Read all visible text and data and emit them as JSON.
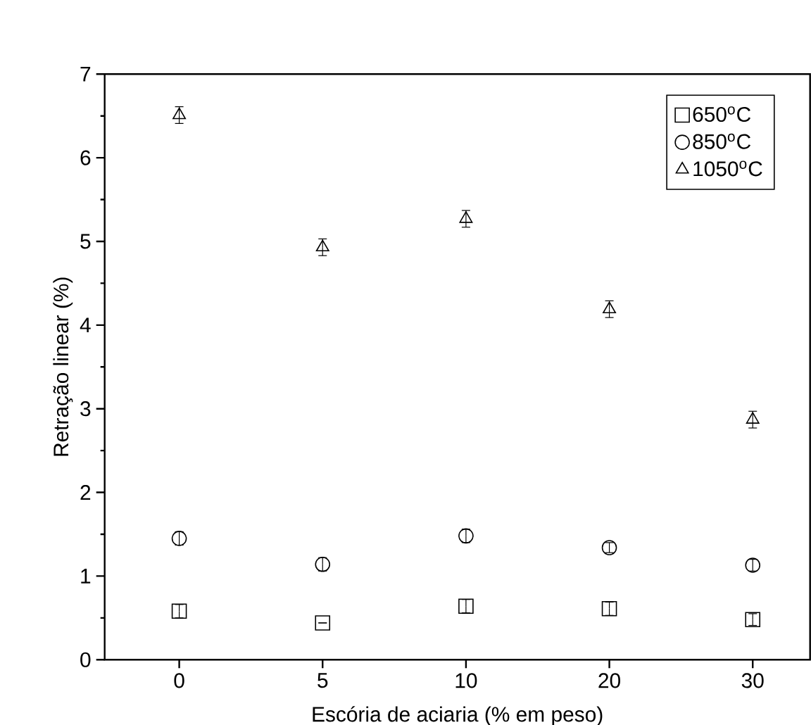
{
  "chart_data": {
    "type": "scatter",
    "xlabel": "Escória de aciaria (% em peso)",
    "ylabel": "Retração linear (%)",
    "categories": [
      "0",
      "5",
      "10",
      "20",
      "30"
    ],
    "ylim": [
      0,
      7
    ],
    "yticks": [
      0,
      1,
      2,
      3,
      4,
      5,
      6,
      7
    ],
    "legend": "top right",
    "grid": false,
    "series": [
      {
        "name": "650$^{o}$C",
        "color": "#000000",
        "marker": "square",
        "values": [
          0.58,
          0.44,
          0.64,
          0.61,
          0.48
        ],
        "errors": [
          0.08,
          null,
          0.08,
          0.08,
          0.07
        ]
      },
      {
        "name": "850$^{o}$C",
        "color": "#000000",
        "marker": "circle",
        "values": [
          1.45,
          1.14,
          1.48,
          1.34,
          1.13
        ],
        "errors": [
          0.08,
          0.08,
          0.08,
          0.06,
          0.07
        ]
      },
      {
        "name": "1050$^{o}$C",
        "color": "#000000",
        "marker": "triangle",
        "values": [
          6.51,
          4.93,
          5.27,
          4.19,
          2.87
        ],
        "errors": [
          0.1,
          0.1,
          0.1,
          0.1,
          0.1
        ]
      }
    ]
  }
}
